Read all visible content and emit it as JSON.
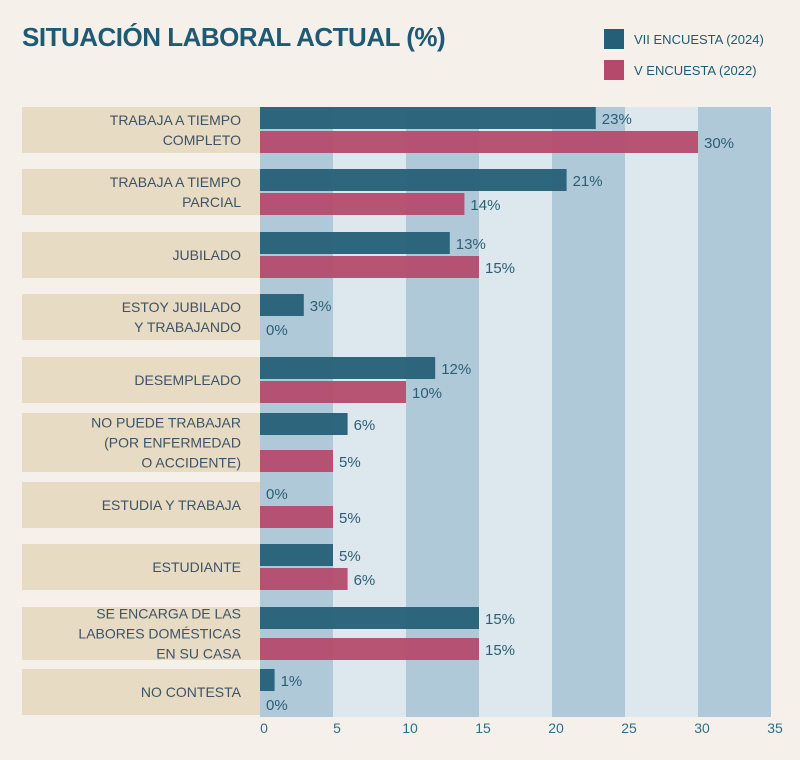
{
  "chart_data": {
    "type": "bar",
    "orientation": "horizontal",
    "title": "SITUACIÓN LABORAL ACTUAL (%)",
    "categories": [
      [
        "TRABAJA A TIEMPO",
        "COMPLETO"
      ],
      [
        "TRABAJA A TIEMPO",
        "PARCIAL"
      ],
      [
        "JUBILADO"
      ],
      [
        "ESTOY JUBILADO",
        "Y TRABAJANDO"
      ],
      [
        "DESEMPLEADO"
      ],
      [
        "NO PUEDE TRABAJAR",
        "(POR ENFERMEDAD",
        "O ACCIDENTE)"
      ],
      [
        "ESTUDIA Y TRABAJA"
      ],
      [
        "ESTUDIANTE"
      ],
      [
        "SE ENCARGA DE LAS",
        "LABORES DOMÉSTICAS",
        "EN SU CASA"
      ],
      [
        "NO CONTESTA"
      ]
    ],
    "series": [
      {
        "name": "VII ENCUESTA (2024)",
        "color": "#235f76",
        "values": [
          23,
          21,
          13,
          3,
          12,
          6,
          0,
          5,
          15,
          1
        ]
      },
      {
        "name": "V ENCUESTA (2022)",
        "color": "#b5496b",
        "values": [
          30,
          14,
          15,
          0,
          10,
          5,
          5,
          6,
          15,
          0
        ]
      }
    ],
    "value_suffix": "%",
    "xlim": [
      0,
      35
    ],
    "xticks": [
      0,
      5,
      10,
      15,
      20,
      25,
      30,
      35
    ],
    "legend_position": "top-right",
    "grid": "alternating-bands",
    "band_colors": [
      "#b0c9d8",
      "#dce7ee"
    ]
  }
}
